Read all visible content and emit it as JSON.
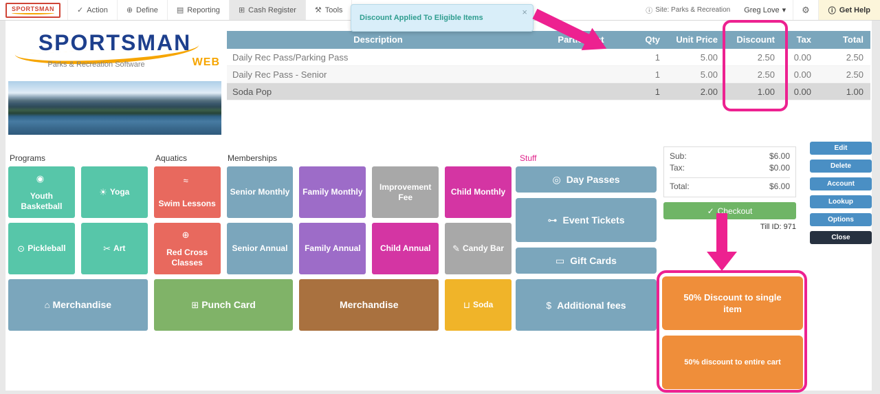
{
  "palette": {
    "annotation_pink": "#ED2190",
    "header_slate": "#7BA6BC",
    "teal": "#57C6A9",
    "salmon": "#E8695E",
    "purple": "#9D6CC8",
    "gray_tile": "#A8A8A8",
    "magenta": "#D435A3",
    "green": "#80B368",
    "brown": "#A9713F",
    "yellow": "#F0B429",
    "orange": "#EF8E3A",
    "checkout_green": "#6FB566",
    "side_blue": "#4A8FC4",
    "close_dark": "#273140",
    "toast_bg": "#D9EEF9",
    "brand_blue": "#1D3F8D",
    "brand_orange": "#F6A500",
    "stuff_label_pink": "#E0218A"
  },
  "navbar": {
    "brand": {
      "name": "SPORTSMAN"
    },
    "items": [
      {
        "label": "Action",
        "glyph": "✓"
      },
      {
        "label": "Define",
        "glyph": "⊕"
      },
      {
        "label": "Reporting",
        "glyph": "▤"
      },
      {
        "label": "Cash Register",
        "glyph": "⊞"
      },
      {
        "label": "Tools",
        "glyph": "⚒"
      }
    ],
    "site": {
      "glyph": "ⓘ",
      "label": "Site: Parks & Recreation"
    },
    "user": {
      "label": "Greg Love",
      "caret": "▾"
    },
    "gear_glyph": "⚙",
    "help": {
      "glyph": "ⓘ",
      "label": "Get Help"
    }
  },
  "toast": {
    "message": "Discount Applied To Eligible Items",
    "close": "×"
  },
  "brand": {
    "name": "SPORTSMAN",
    "tagline": "Parks & Recreation Software",
    "web": "WEB"
  },
  "cart": {
    "columns": [
      "Description",
      "Participant",
      "Qty",
      "Unit Price",
      "Discount",
      "Tax",
      "Total"
    ],
    "rows": [
      {
        "description": "Daily Rec Pass/Parking Pass",
        "participant": "",
        "qty": "1",
        "unit_price": "5.00",
        "discount": "2.50",
        "tax": "0.00",
        "total": "2.50"
      },
      {
        "description": "Daily Rec Pass - Senior",
        "participant": "",
        "qty": "1",
        "unit_price": "5.00",
        "discount": "2.50",
        "tax": "0.00",
        "total": "2.50"
      },
      {
        "description": "Soda Pop",
        "participant": "",
        "qty": "1",
        "unit_price": "2.00",
        "discount": "1.00",
        "tax": "0.00",
        "total": "1.00"
      }
    ]
  },
  "categories": [
    "Programs",
    "Aquatics",
    "Memberships",
    "Stuff"
  ],
  "tiles": [
    {
      "label": "Youth Basketball",
      "glyph": "◉"
    },
    {
      "label": "Yoga",
      "glyph": "☀"
    },
    {
      "label": "Swim Lessons",
      "glyph": "≈"
    },
    {
      "label": "Senior Monthly"
    },
    {
      "label": "Family Monthly"
    },
    {
      "label": "Improvement Fee"
    },
    {
      "label": "Child Monthly"
    },
    {
      "label": "Pickleball",
      "glyph": "⊙"
    },
    {
      "label": "Art",
      "glyph": "✂"
    },
    {
      "label": "Red Cross Classes",
      "glyph": "⊕"
    },
    {
      "label": "Senior Annual"
    },
    {
      "label": "Family Annual"
    },
    {
      "label": "Child Annual"
    },
    {
      "label": "Candy Bar",
      "glyph": "✎"
    },
    {
      "label": "Merchandise",
      "glyph": "⌂"
    },
    {
      "label": "Punch Card",
      "glyph": "⊞"
    },
    {
      "label": "Merchandise"
    },
    {
      "label": "Soda",
      "glyph": "⊔"
    }
  ],
  "stuff_buttons": [
    {
      "label": "Day Passes",
      "glyph": "◎"
    },
    {
      "label": "Event Tickets",
      "glyph": "⊶"
    },
    {
      "label": "Gift Cards",
      "glyph": "▭"
    },
    {
      "label": "Additional fees",
      "glyph": "$"
    }
  ],
  "summary": {
    "sub_label": "Sub:",
    "sub_value": "$6.00",
    "tax_label": "Tax:",
    "tax_value": "$0.00",
    "total_label": "Total:",
    "total_value": "$6.00",
    "checkout_glyph": "✓",
    "checkout_label": "Checkout",
    "till": "Till ID: 971"
  },
  "side_buttons": [
    "Edit",
    "Delete",
    "Account",
    "Lookup",
    "Options",
    "Close"
  ],
  "discount_buttons": [
    "50% Discount to single item",
    "50% discount to entire cart"
  ]
}
